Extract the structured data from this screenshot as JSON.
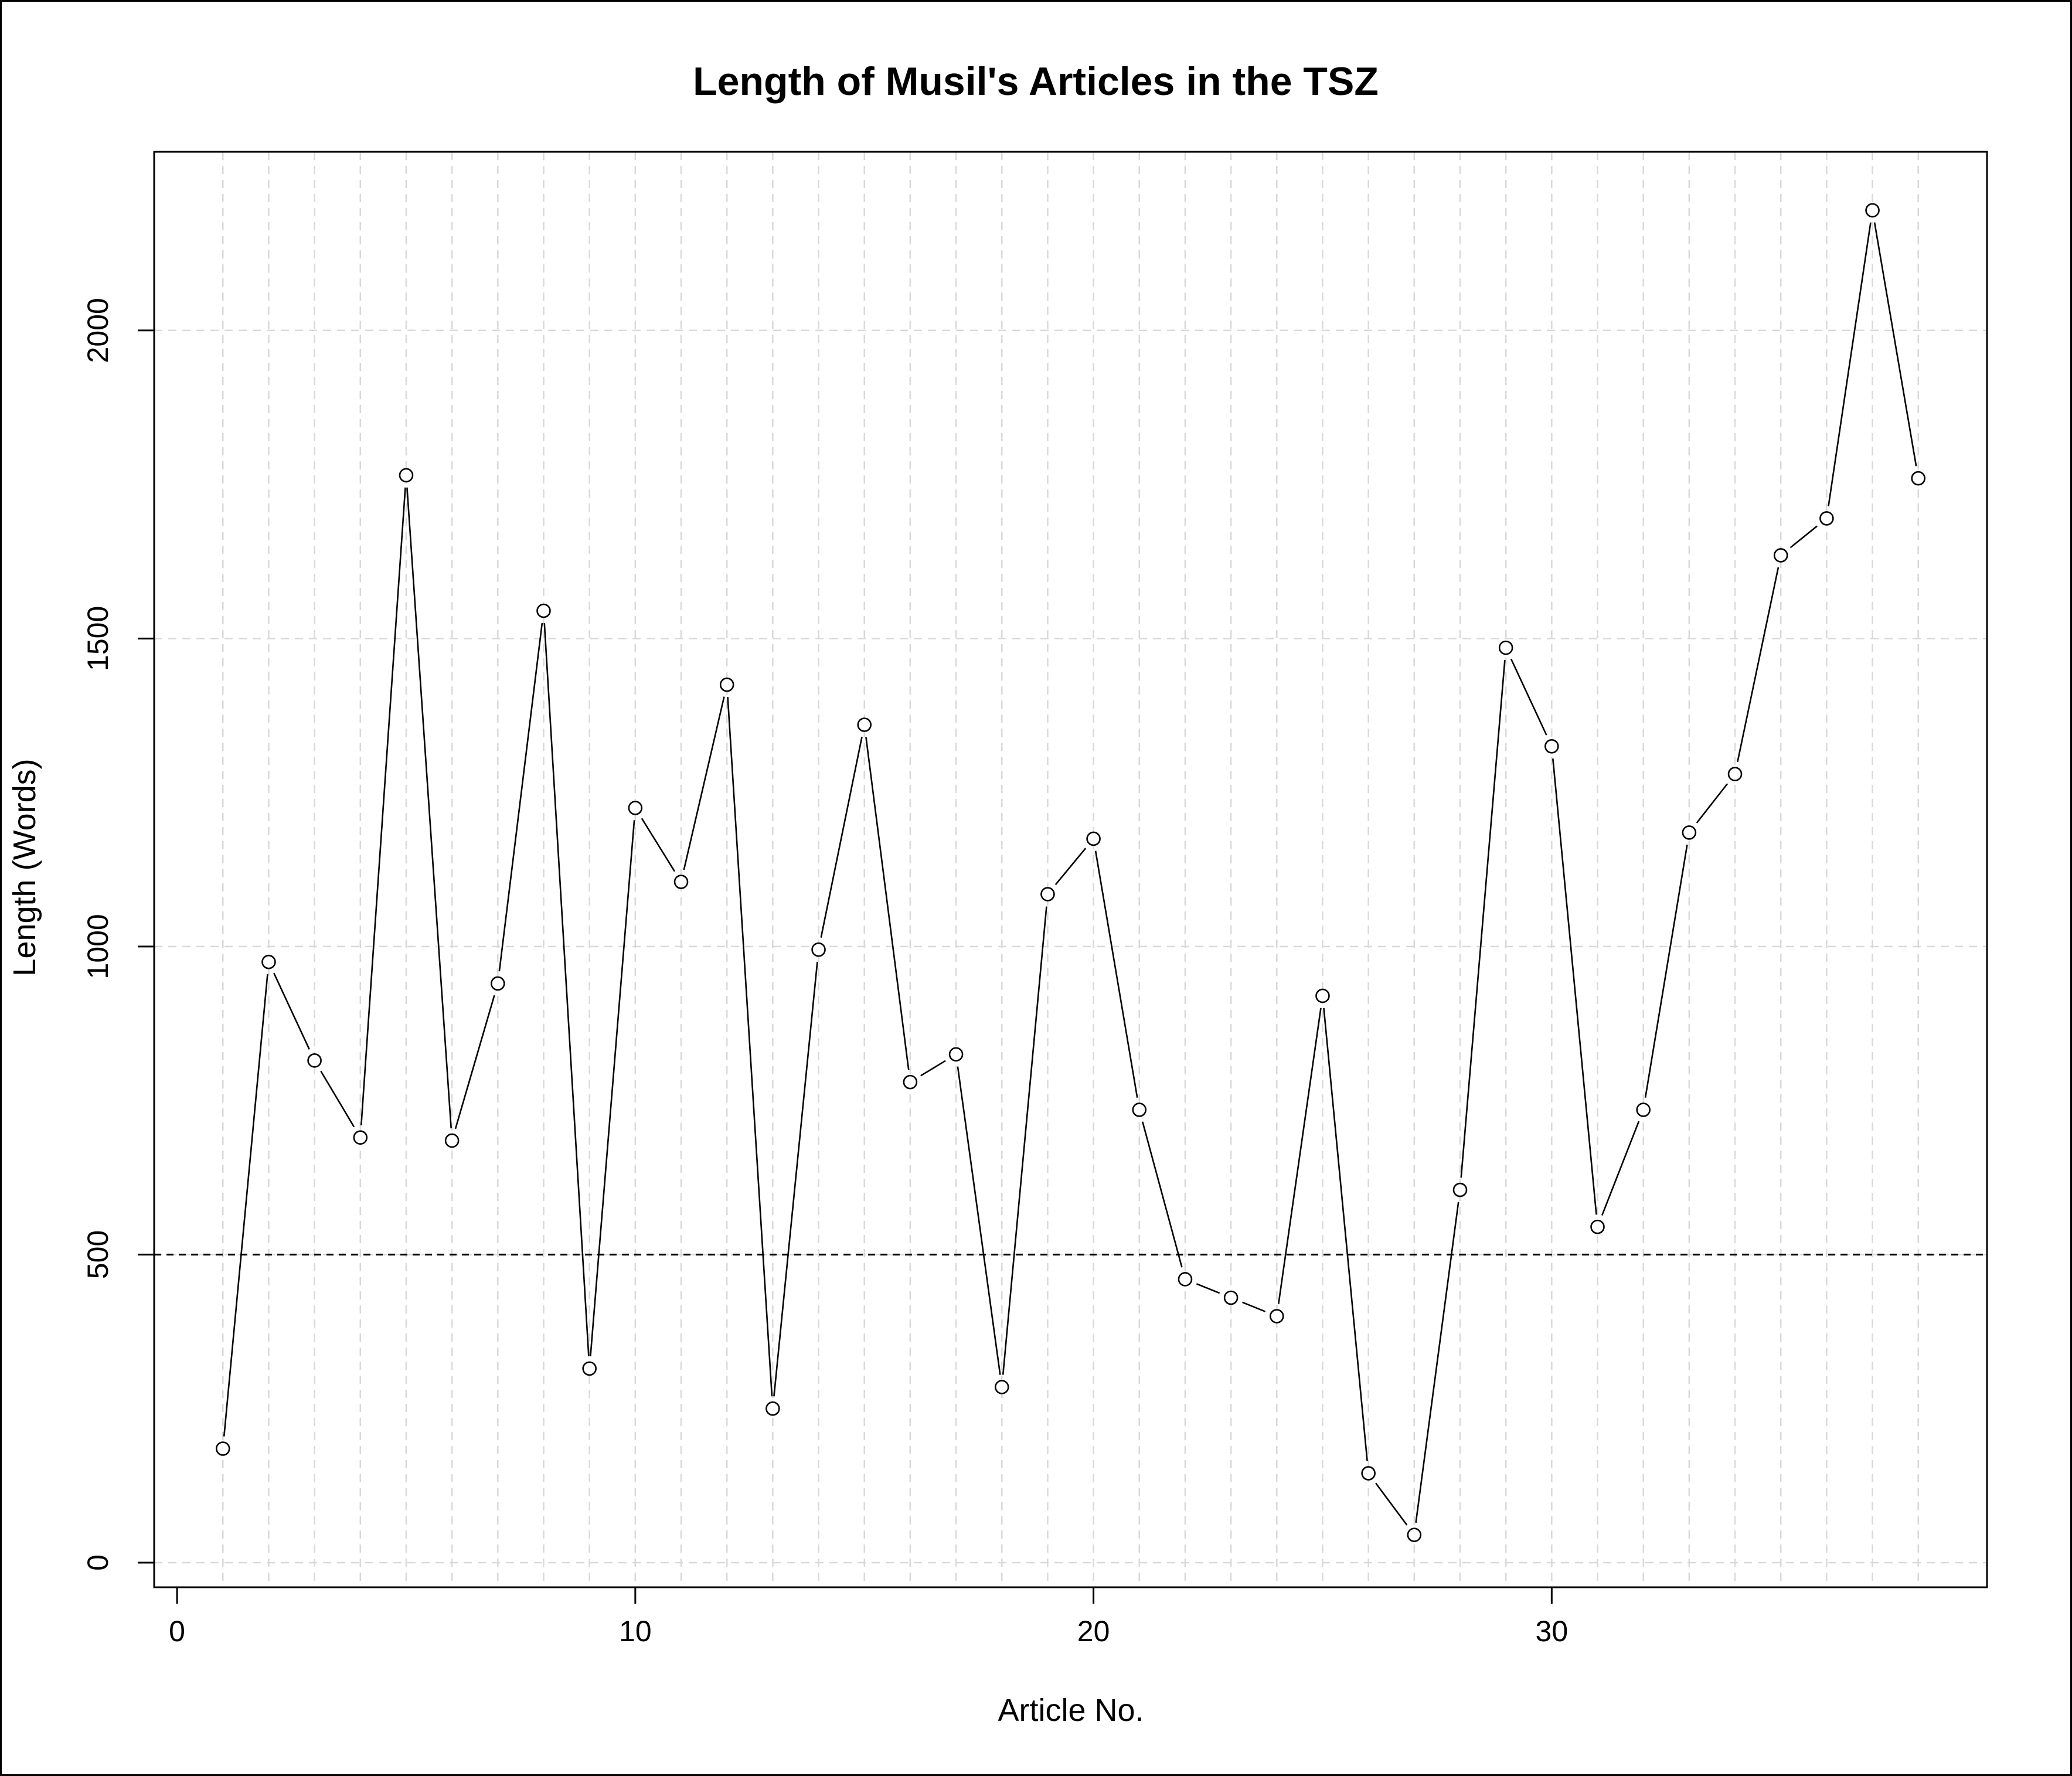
{
  "chart_data": {
    "type": "line",
    "title": "Length of Musil's Articles in the TSZ",
    "xlabel": "Article No.",
    "ylabel": "Length (Words)",
    "xlim": [
      -0.5,
      39.5
    ],
    "ylim": [
      -40,
      2290
    ],
    "x_ticks": [
      0,
      10,
      20,
      30
    ],
    "y_ticks": [
      0,
      500,
      1000,
      1500,
      2000
    ],
    "grid": true,
    "reference_line": {
      "y": 500,
      "style": "dashed"
    },
    "markers": "open-circle",
    "series": [
      {
        "x": [
          1,
          2,
          3,
          4,
          5,
          6,
          7,
          8,
          9,
          10,
          11,
          12,
          13,
          14,
          15,
          16,
          17,
          18,
          19,
          20,
          21,
          22,
          23,
          24,
          25,
          26,
          27,
          28,
          29,
          30,
          31,
          32,
          33,
          34,
          35,
          36,
          37,
          38
        ],
        "values": [
          185,
          975,
          815,
          690,
          1765,
          685,
          940,
          1545,
          315,
          1225,
          1105,
          1425,
          250,
          995,
          1360,
          780,
          825,
          285,
          1085,
          1175,
          735,
          460,
          430,
          400,
          920,
          145,
          45,
          605,
          1485,
          1325,
          545,
          735,
          1185,
          1280,
          1635,
          1695,
          2195,
          1760
        ]
      }
    ],
    "colors": {
      "line": "#000000",
      "grid": "#d9d9d9",
      "marker_fill": "#ffffff"
    }
  }
}
